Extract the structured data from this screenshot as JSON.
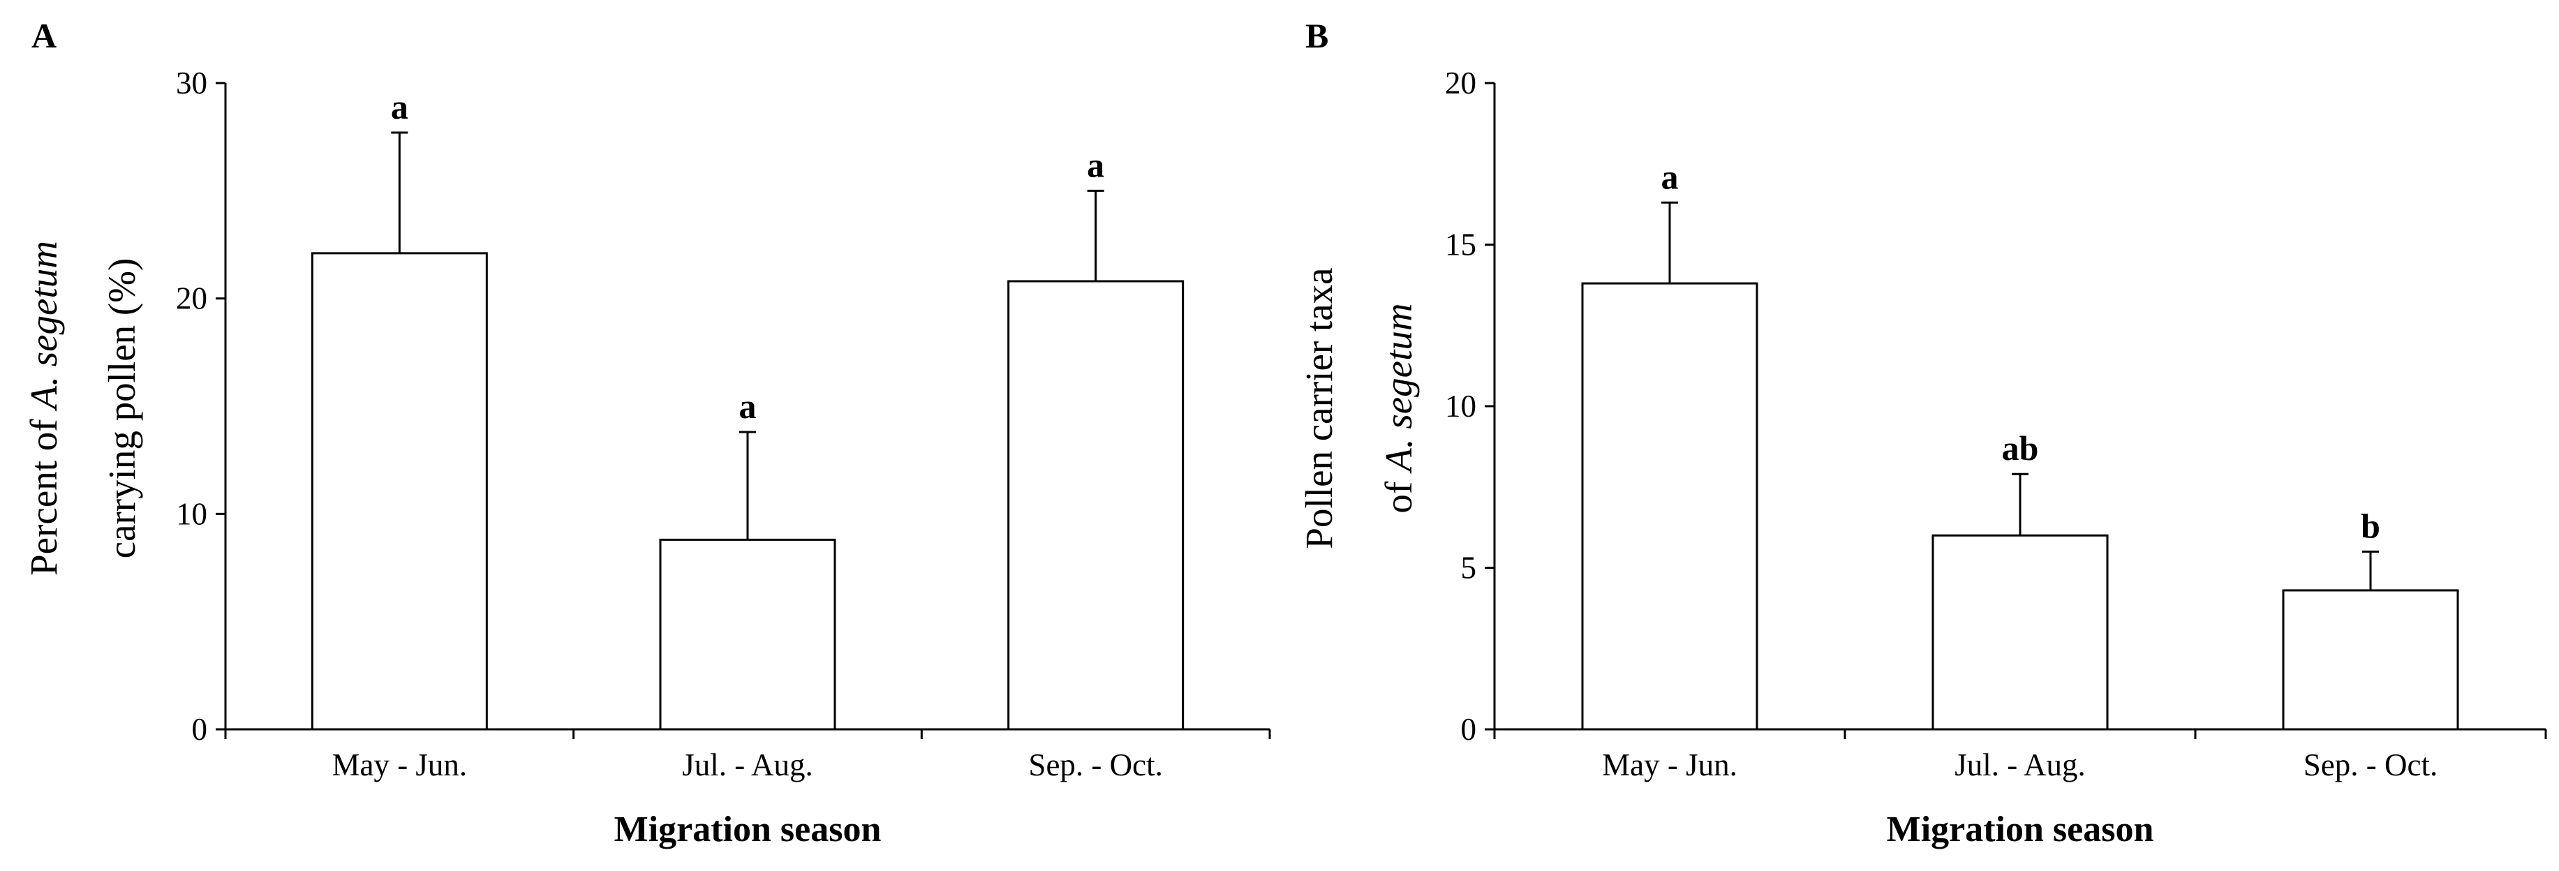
{
  "chart_data": [
    {
      "type": "bar",
      "panel_label": "A",
      "ylabel": [
        [
          {
            "text": "Percent of"
          },
          {
            "text": "A. segetum",
            "italic": true
          }
        ],
        [
          {
            "text": "carrying pollen (%)"
          }
        ]
      ],
      "xlabel": "Migration season",
      "categories": [
        "May - Jun.",
        "Jul. - Aug.",
        "Sep. - Oct."
      ],
      "values": [
        22.1,
        8.8,
        20.8
      ],
      "errors": [
        5.6,
        5.0,
        4.2
      ],
      "significance_labels": [
        "a",
        "a",
        "a"
      ],
      "color": "#ffffff",
      "ylim": [
        0,
        30
      ],
      "yticks": [
        0,
        10,
        20,
        30
      ]
    },
    {
      "type": "bar",
      "panel_label": "B",
      "ylabel": [
        [
          {
            "text": "Pollen carrier taxa"
          }
        ],
        [
          {
            "text": "of"
          },
          {
            "text": "A. segetum",
            "italic": true
          }
        ]
      ],
      "xlabel": "Migration season",
      "categories": [
        "May - Jun.",
        "Jul. - Aug.",
        "Sep. - Oct."
      ],
      "values": [
        13.8,
        6.0,
        4.3
      ],
      "errors": [
        2.5,
        1.9,
        1.2
      ],
      "significance_labels": [
        "a",
        "ab",
        "b"
      ],
      "color": "#ffffff",
      "ylim": [
        0,
        20
      ],
      "yticks": [
        0,
        5,
        10,
        15,
        20
      ]
    }
  ]
}
